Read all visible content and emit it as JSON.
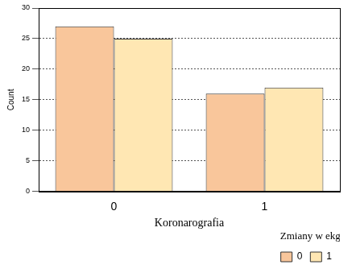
{
  "chart_data": {
    "type": "bar",
    "x_label": "Koronarografia",
    "y_label": "Count",
    "categories": [
      "0",
      "1"
    ],
    "series": [
      {
        "name": "0",
        "color": "#f9c69b",
        "values": [
          27,
          16
        ]
      },
      {
        "name": "1",
        "color": "#ffe7b3",
        "values": [
          25,
          17
        ]
      }
    ],
    "ylim": [
      0,
      30
    ],
    "yticks": [
      0,
      5,
      10,
      15,
      20,
      25,
      30
    ],
    "grid": true,
    "legend": "bottom right",
    "legend_title": "Zmiany w ekg"
  }
}
